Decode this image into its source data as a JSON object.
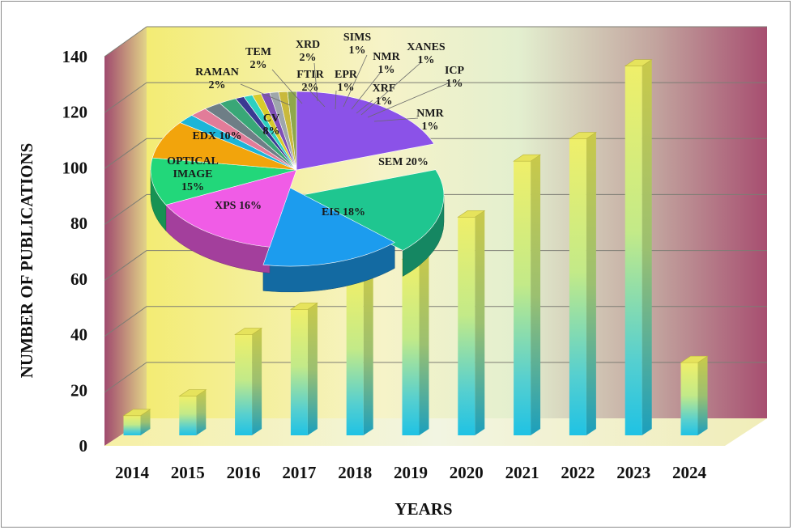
{
  "chart_data": [
    {
      "type": "bar",
      "title": "",
      "xlabel": "YEARS",
      "ylabel": "NUMBER OF PUBLICATIONS",
      "ylim": [
        0,
        140
      ],
      "yticks": [
        "0",
        "20",
        "40",
        "60",
        "80",
        "100",
        "120",
        "140"
      ],
      "grid": true,
      "categories": [
        "2014",
        "2015",
        "2016",
        "2017",
        "2018",
        "2019",
        "2020",
        "2021",
        "2022",
        "2023",
        "2024"
      ],
      "values": [
        7,
        14,
        36,
        45,
        56,
        63,
        78,
        98,
        106,
        132,
        26
      ]
    },
    {
      "type": "pie",
      "slices": [
        {
          "label": "SEM 20%",
          "value": 20,
          "color": "#8B52E8"
        },
        {
          "label": "EIS 18%",
          "value": 18,
          "color": "#1FC690"
        },
        {
          "label": "XPS 16%",
          "value": 16,
          "color": "#1C9CEE"
        },
        {
          "label": "OPTICAL IMAGE 15%",
          "value": 15,
          "color": "#F05CE6"
        },
        {
          "label": "EDX 10%",
          "value": 10,
          "color": "#22D77A"
        },
        {
          "label": "CV 8%",
          "value": 8,
          "color": "#F2A40C"
        },
        {
          "label": "RAMAN 2%",
          "value": 2,
          "color": "#1CB5D8"
        },
        {
          "label": "TEM 2%",
          "value": 2,
          "color": "#E27C99"
        },
        {
          "label": "XRD 2%",
          "value": 2,
          "color": "#6E7E86"
        },
        {
          "label": "FTIR 2%",
          "value": 2,
          "color": "#39A777"
        },
        {
          "label": "EPR 1%",
          "value": 1,
          "color": "#3A3A92"
        },
        {
          "label": "SIMS 1%",
          "value": 1,
          "color": "#2DD0C1"
        },
        {
          "label": "NMR 1%",
          "value": 1,
          "color": "#D7CC2C"
        },
        {
          "label": "XRF 1%",
          "value": 1,
          "color": "#7F4FB6"
        },
        {
          "label": "XANES 1%",
          "value": 1,
          "color": "#9EA6AB"
        },
        {
          "label": "ICP 1%",
          "value": 1,
          "color": "#C9B93C"
        },
        {
          "label": "NMR 1%",
          "value": 1,
          "color": "#8FA84A"
        }
      ]
    }
  ]
}
